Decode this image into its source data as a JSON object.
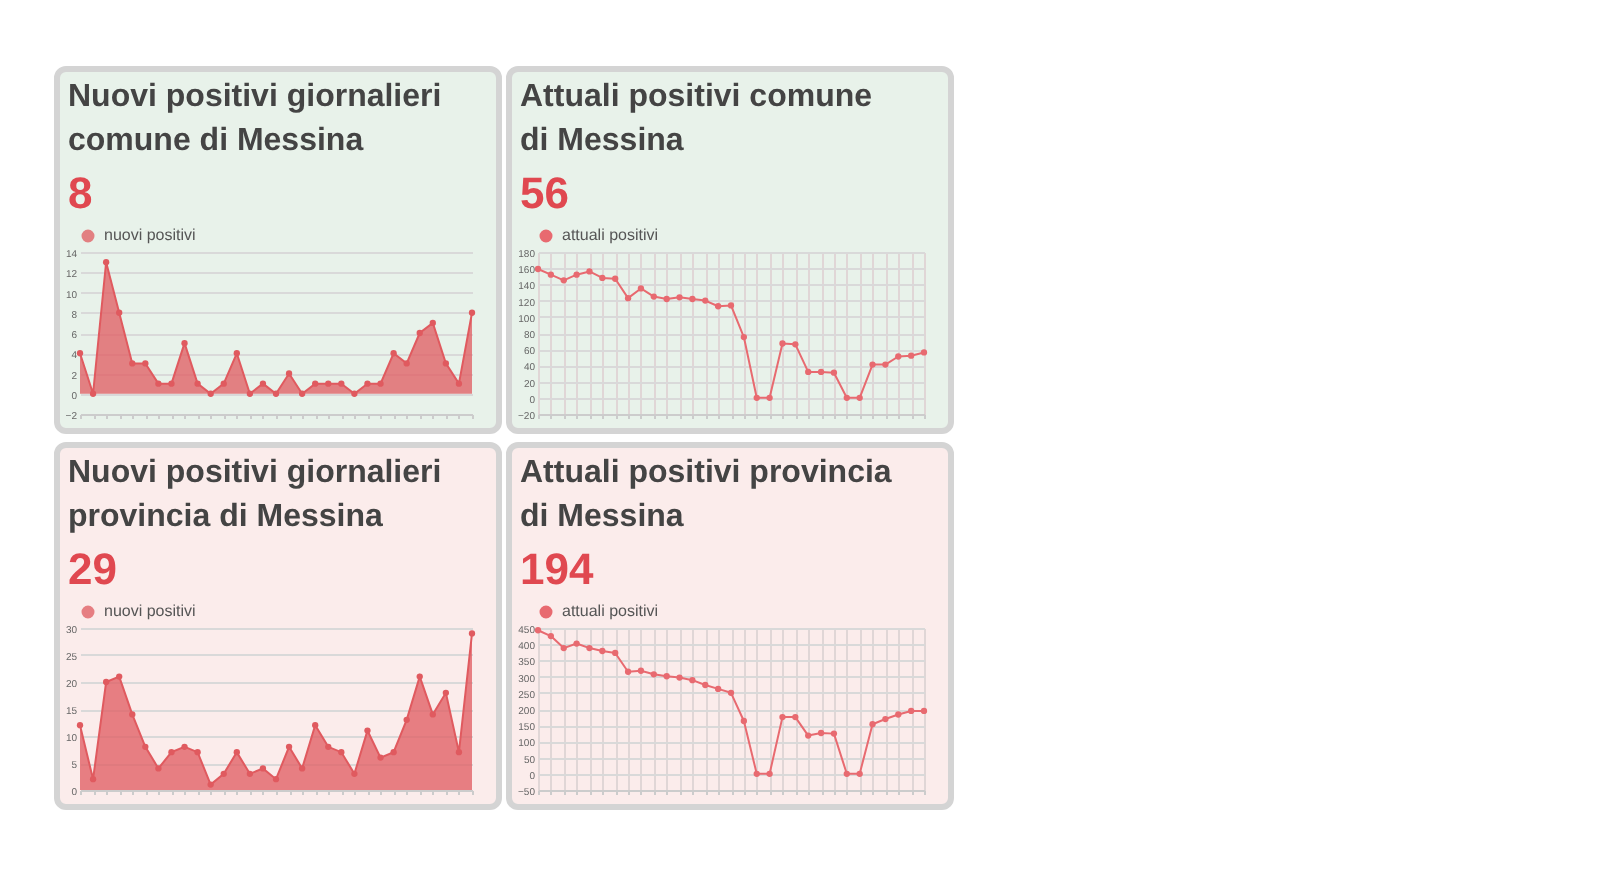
{
  "chart_data": [
    {
      "type": "area",
      "title": "Nuovi positivi giornalieri comune di Messina",
      "subtitle": "8",
      "marker": "circle",
      "grid": "y",
      "legend": "top",
      "tick_labels": "y",
      "categories": [
        null,
        null,
        null,
        null,
        null,
        null,
        null,
        null,
        null,
        null,
        null,
        null,
        null,
        null,
        null,
        null,
        null,
        null,
        null,
        null,
        null,
        null,
        null,
        null,
        null,
        null,
        null,
        null,
        null,
        null,
        null
      ],
      "ylim": [
        -2,
        14
      ],
      "yticks": [
        -2,
        0,
        2,
        4,
        6,
        8,
        10,
        12,
        14
      ],
      "series": [
        {
          "name": "nuovi positivi",
          "color": "#e05a5f",
          "values": [
            4,
            0,
            13,
            8,
            3,
            3,
            1,
            1,
            5,
            1,
            0,
            1,
            4,
            0,
            1,
            0,
            2,
            0,
            1,
            1,
            1,
            0,
            1,
            1,
            4,
            3,
            6,
            7,
            3,
            1,
            8
          ]
        }
      ]
    },
    {
      "type": "line",
      "title": "Attuali positivi comune di Messina",
      "subtitle": "56",
      "marker": "circle",
      "grid": true,
      "legend": "top",
      "tick_labels": "y",
      "categories": [
        null,
        null,
        null,
        null,
        null,
        null,
        null,
        null,
        null,
        null,
        null,
        null,
        null,
        null,
        null,
        null,
        null,
        null,
        null,
        null,
        null,
        null,
        null,
        null,
        null,
        null,
        null,
        null,
        null,
        null,
        null
      ],
      "ylim": [
        -20,
        180
      ],
      "yticks": [
        -20,
        0,
        20,
        40,
        60,
        80,
        100,
        120,
        140,
        160,
        180
      ],
      "series": [
        {
          "name": "attuali positivi",
          "color": "#e86a70",
          "values": [
            159,
            152,
            145,
            152,
            156,
            148,
            147,
            123,
            135,
            125,
            122,
            124,
            122,
            120,
            113,
            114,
            75,
            0,
            0,
            67,
            66,
            32,
            32,
            31,
            0,
            0,
            41,
            41,
            51,
            52,
            56
          ]
        }
      ]
    },
    {
      "type": "area",
      "title": "Nuovi positivi giornalieri provincia di Messina",
      "subtitle": "29",
      "marker": "circle",
      "grid": "y",
      "legend": "top",
      "tick_labels": "y",
      "categories": [
        null,
        null,
        null,
        null,
        null,
        null,
        null,
        null,
        null,
        null,
        null,
        null,
        null,
        null,
        null,
        null,
        null,
        null,
        null,
        null,
        null,
        null,
        null,
        null,
        null,
        null,
        null,
        null,
        null,
        null,
        null
      ],
      "ylim": [
        0,
        30
      ],
      "yticks": [
        0,
        5,
        10,
        15,
        20,
        25,
        30
      ],
      "series": [
        {
          "name": "nuovi positivi",
          "color": "#e05a5f",
          "values": [
            12,
            2,
            20,
            21,
            14,
            8,
            4,
            7,
            8,
            7,
            1,
            3,
            7,
            3,
            4,
            2,
            8,
            4,
            12,
            8,
            7,
            3,
            11,
            6,
            7,
            13,
            21,
            14,
            18,
            7,
            29
          ]
        }
      ]
    },
    {
      "type": "line",
      "title": "Attuali positivi provincia di Messina",
      "subtitle": "194",
      "marker": "circle",
      "grid": true,
      "legend": "top",
      "tick_labels": "y",
      "categories": [
        null,
        null,
        null,
        null,
        null,
        null,
        null,
        null,
        null,
        null,
        null,
        null,
        null,
        null,
        null,
        null,
        null,
        null,
        null,
        null,
        null,
        null,
        null,
        null,
        null,
        null,
        null,
        null,
        null,
        null,
        null
      ],
      "ylim": [
        -50,
        450
      ],
      "yticks": [
        -50,
        0,
        50,
        100,
        150,
        200,
        250,
        300,
        350,
        400,
        450
      ],
      "series": [
        {
          "name": "attuali positivi",
          "color": "#e86a70",
          "values": [
            443,
            425,
            388,
            402,
            388,
            379,
            373,
            315,
            318,
            307,
            301,
            297,
            289,
            274,
            262,
            250,
            163,
            0,
            0,
            175,
            175,
            118,
            126,
            124,
            0,
            0,
            153,
            169,
            183,
            194,
            194
          ]
        }
      ]
    }
  ]
}
